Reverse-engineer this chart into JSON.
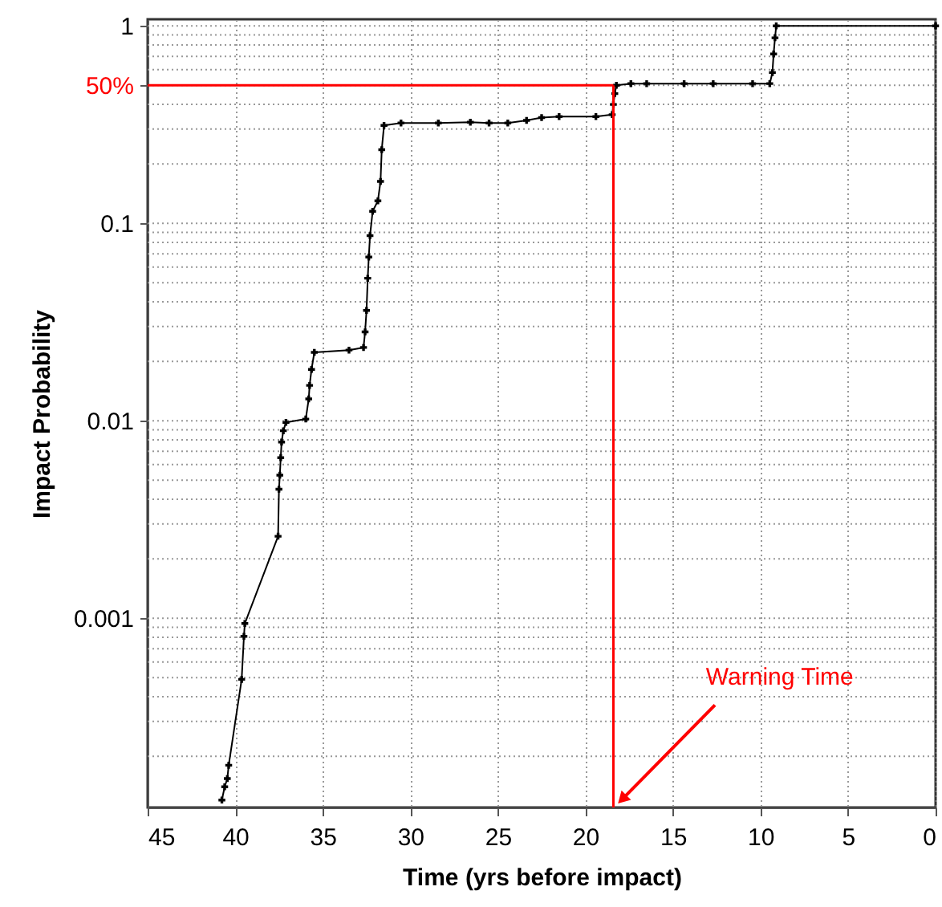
{
  "chart_data": {
    "type": "line",
    "xlabel": "Time (yrs before impact)",
    "ylabel": "Impact Probability",
    "x": [
      40.76,
      40.6,
      40.45,
      40.37,
      39.63,
      39.5,
      39.45,
      37.55,
      37.5,
      37.45,
      37.4,
      37.35,
      37.25,
      37.1,
      35.97,
      35.8,
      35.75,
      35.64,
      35.48,
      33.5,
      32.67,
      32.58,
      32.5,
      32.43,
      32.37,
      32.3,
      32.15,
      31.85,
      31.7,
      31.63,
      31.5,
      30.53,
      28.4,
      26.57,
      25.5,
      24.43,
      23.36,
      22.5,
      21.5,
      19.4,
      18.47,
      18.4,
      18.32,
      18.23,
      17.4,
      16.5,
      14.36,
      12.7,
      10.45,
      9.47,
      9.32,
      9.25,
      9.17,
      9.1,
      0
    ],
    "series": [
      {
        "color": "#000000",
        "values": [
          0.00012,
          0.00014,
          0.000154,
          0.00018,
          0.00049,
          0.00081,
          0.00094,
          0.0026,
          0.0045,
          0.0053,
          0.0065,
          0.0078,
          0.0089,
          0.0098,
          0.0102,
          0.0129,
          0.0151,
          0.0182,
          0.0222,
          0.0228,
          0.0235,
          0.0282,
          0.0362,
          0.0527,
          0.0675,
          0.0866,
          0.115,
          0.13,
          0.163,
          0.236,
          0.313,
          0.322,
          0.322,
          0.325,
          0.322,
          0.322,
          0.332,
          0.343,
          0.347,
          0.347,
          0.355,
          0.4,
          0.454,
          0.5,
          0.51,
          0.51,
          0.51,
          0.51,
          0.51,
          0.51,
          0.58,
          0.72,
          0.87,
          1,
          1
        ]
      }
    ],
    "xlim": [
      45,
      0
    ],
    "xticks": [
      45,
      40,
      35,
      30,
      25,
      20,
      15,
      10,
      5,
      0
    ],
    "ylim": [
      0.00011,
      1.08
    ],
    "yticks": [
      0.001,
      0.01,
      0.1,
      {
        "value": 0.5,
        "label": "50%"
      },
      1
    ],
    "log": "y",
    "grid": true,
    "marker": "cross",
    "line_style": "solid",
    "ref_lines": [
      {
        "axis": "y",
        "value": 0.5,
        "color": "#ff0000"
      },
      {
        "axis": "x",
        "value": 18.4,
        "color": "#ff0000"
      }
    ],
    "annotations": [
      {
        "text": "Warning Time",
        "x": 18.4,
        "y": 0.00011
      }
    ]
  }
}
